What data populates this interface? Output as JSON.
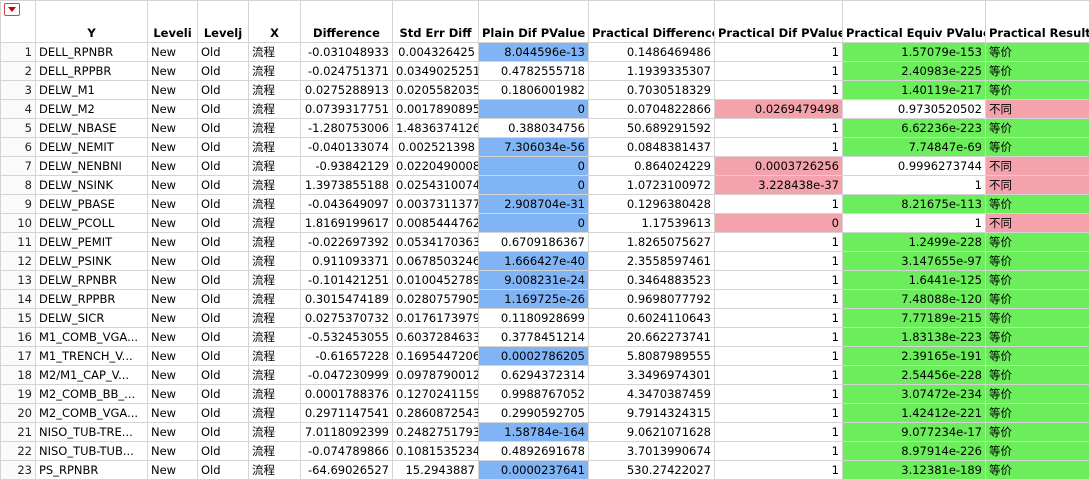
{
  "table": {
    "columns": [
      "Y",
      "Leveli",
      "Levelj",
      "X",
      "Difference",
      "Std Err Diff",
      "Plain Dif PValue",
      "Practical Difference",
      "Practical Dif PValue",
      "Practical Equiv PValue",
      "Practical Result"
    ],
    "rows": [
      {
        "cells": [
          "1",
          "DELL_RPNBR",
          "New",
          "Old",
          "流程",
          "-0.031048933",
          "0.004326425",
          "8.044596e-13",
          "0.1486469486",
          "1",
          "1.57079e-153",
          "等价"
        ],
        "colors": {
          "7": "#80b4f5",
          "10": "#6cee5c",
          "11": "#6cee5c"
        }
      },
      {
        "cells": [
          "2",
          "DELL_RPPBR",
          "New",
          "Old",
          "流程",
          "-0.024751371",
          "0.0349025251",
          "0.4782555718",
          "1.1939335307",
          "1",
          "2.40983e-225",
          "等价"
        ],
        "colors": {
          "10": "#6cee5c",
          "11": "#6cee5c"
        }
      },
      {
        "cells": [
          "3",
          "DELW_M1",
          "New",
          "Old",
          "流程",
          "0.0275288913",
          "0.0205582035",
          "0.1806001982",
          "0.7030518329",
          "1",
          "1.40119e-217",
          "等价"
        ],
        "colors": {
          "10": "#6cee5c",
          "11": "#6cee5c"
        }
      },
      {
        "cells": [
          "4",
          "DELW_M2",
          "New",
          "Old",
          "流程",
          "0.0739317751",
          "0.0017890895",
          "0",
          "0.0704822866",
          "0.0269479498",
          "0.9730520502",
          "不同"
        ],
        "colors": {
          "7": "#80b4f5",
          "9": "#f4a2ac",
          "11": "#f4a2ac"
        }
      },
      {
        "cells": [
          "5",
          "DELW_NBASE",
          "New",
          "Old",
          "流程",
          "-1.280753006",
          "1.4836374126",
          "0.388034756",
          "50.689291592",
          "1",
          "6.62236e-223",
          "等价"
        ],
        "colors": {
          "10": "#6cee5c",
          "11": "#6cee5c"
        }
      },
      {
        "cells": [
          "6",
          "DELW_NEMIT",
          "New",
          "Old",
          "流程",
          "-0.040133074",
          "0.002521398",
          "7.306034e-56",
          "0.0848381437",
          "1",
          "7.74847e-69",
          "等价"
        ],
        "colors": {
          "7": "#80b4f5",
          "10": "#6cee5c",
          "11": "#6cee5c"
        }
      },
      {
        "cells": [
          "7",
          "DELW_NENBNI",
          "New",
          "Old",
          "流程",
          "-0.93842129",
          "0.0220490008",
          "0",
          "0.864024229",
          "0.0003726256",
          "0.9996273744",
          "不同"
        ],
        "colors": {
          "7": "#80b4f5",
          "9": "#f4a2ac",
          "11": "#f4a2ac"
        }
      },
      {
        "cells": [
          "8",
          "DELW_NSINK",
          "New",
          "Old",
          "流程",
          "1.3973855188",
          "0.0254310074",
          "0",
          "1.0723100972",
          "3.228438e-37",
          "1",
          "不同"
        ],
        "colors": {
          "7": "#80b4f5",
          "9": "#f4a2ac",
          "11": "#f4a2ac"
        }
      },
      {
        "cells": [
          "9",
          "DELW_PBASE",
          "New",
          "Old",
          "流程",
          "-0.043649097",
          "0.0037311377",
          "2.908704e-31",
          "0.1296380428",
          "1",
          "8.21675e-113",
          "等价"
        ],
        "colors": {
          "7": "#80b4f5",
          "10": "#6cee5c",
          "11": "#6cee5c"
        }
      },
      {
        "cells": [
          "10",
          "DELW_PCOLL",
          "New",
          "Old",
          "流程",
          "1.8169199617",
          "0.0085444762",
          "0",
          "1.17539613",
          "0",
          "1",
          "不同"
        ],
        "colors": {
          "7": "#80b4f5",
          "9": "#f4a2ac",
          "11": "#f4a2ac"
        }
      },
      {
        "cells": [
          "11",
          "DELW_PEMIT",
          "New",
          "Old",
          "流程",
          "-0.022697392",
          "0.0534170363",
          "0.6709186367",
          "1.8265075627",
          "1",
          "1.2499e-228",
          "等价"
        ],
        "colors": {
          "10": "#6cee5c",
          "11": "#6cee5c"
        }
      },
      {
        "cells": [
          "12",
          "DELW_PSINK",
          "New",
          "Old",
          "流程",
          "0.911093371",
          "0.0678503246",
          "1.666427e-40",
          "2.3558597461",
          "1",
          "3.147655e-97",
          "等价"
        ],
        "colors": {
          "7": "#80b4f5",
          "10": "#6cee5c",
          "11": "#6cee5c"
        }
      },
      {
        "cells": [
          "13",
          "DELW_RPNBR",
          "New",
          "Old",
          "流程",
          "-0.101421251",
          "0.0100452789",
          "9.008231e-24",
          "0.3464883523",
          "1",
          "1.6441e-125",
          "等价"
        ],
        "colors": {
          "7": "#80b4f5",
          "10": "#6cee5c",
          "11": "#6cee5c"
        }
      },
      {
        "cells": [
          "14",
          "DELW_RPPBR",
          "New",
          "Old",
          "流程",
          "0.3015474189",
          "0.0280757905",
          "1.169725e-26",
          "0.9698077792",
          "1",
          "7.48088e-120",
          "等价"
        ],
        "colors": {
          "7": "#80b4f5",
          "10": "#6cee5c",
          "11": "#6cee5c"
        }
      },
      {
        "cells": [
          "15",
          "DELW_SICR",
          "New",
          "Old",
          "流程",
          "0.0275370732",
          "0.0176173979",
          "0.1180928699",
          "0.6024110643",
          "1",
          "7.77189e-215",
          "等价"
        ],
        "colors": {
          "10": "#6cee5c",
          "11": "#6cee5c"
        }
      },
      {
        "cells": [
          "16",
          "M1_COMB_VGA...",
          "New",
          "Old",
          "流程",
          "-0.532453055",
          "0.6037284633",
          "0.3778451214",
          "20.662273741",
          "1",
          "1.83138e-223",
          "等价"
        ],
        "colors": {
          "10": "#6cee5c",
          "11": "#6cee5c"
        }
      },
      {
        "cells": [
          "17",
          "M1_TRENCH_V...",
          "New",
          "Old",
          "流程",
          "-0.61657228",
          "0.1695447206",
          "0.0002786205",
          "5.8087989555",
          "1",
          "2.39165e-191",
          "等价"
        ],
        "colors": {
          "7": "#80b4f5",
          "10": "#6cee5c",
          "11": "#6cee5c"
        }
      },
      {
        "cells": [
          "18",
          "M2/M1_CAP_V...",
          "New",
          "Old",
          "流程",
          "-0.047230999",
          "0.0978790012",
          "0.6294372314",
          "3.3496974301",
          "1",
          "2.54456e-228",
          "等价"
        ],
        "colors": {
          "10": "#6cee5c",
          "11": "#6cee5c"
        }
      },
      {
        "cells": [
          "19",
          "M2_COMB_BB_...",
          "New",
          "Old",
          "流程",
          "0.0001788376",
          "0.1270241159",
          "0.9988767052",
          "4.3470387459",
          "1",
          "3.07472e-234",
          "等价"
        ],
        "colors": {
          "10": "#6cee5c",
          "11": "#6cee5c"
        }
      },
      {
        "cells": [
          "20",
          "M2_COMB_VGA...",
          "New",
          "Old",
          "流程",
          "0.2971147541",
          "0.2860872543",
          "0.2990592705",
          "9.7914324315",
          "1",
          "1.42412e-221",
          "等价"
        ],
        "colors": {
          "10": "#6cee5c",
          "11": "#6cee5c"
        }
      },
      {
        "cells": [
          "21",
          "NISO_TUB-TRE...",
          "New",
          "Old",
          "流程",
          "7.0118092399",
          "0.2482751793",
          "1.58784e-164",
          "9.0621071628",
          "1",
          "9.077234e-17",
          "等价"
        ],
        "colors": {
          "7": "#80b4f5",
          "10": "#6cee5c",
          "11": "#6cee5c"
        }
      },
      {
        "cells": [
          "22",
          "NISO_TUB-TUB...",
          "New",
          "Old",
          "流程",
          "-0.074789866",
          "0.1081535234",
          "0.4892691678",
          "3.7013990674",
          "1",
          "8.97914e-226",
          "等价"
        ],
        "colors": {
          "10": "#6cee5c",
          "11": "#6cee5c"
        }
      },
      {
        "cells": [
          "23",
          "PS_RPNBR",
          "New",
          "Old",
          "流程",
          "-64.69026527",
          "15.2943887",
          "0.0000237641",
          "530.27422027",
          "1",
          "3.12381e-189",
          "等价"
        ],
        "colors": {
          "7": "#80b4f5",
          "10": "#6cee5c",
          "11": "#6cee5c"
        }
      }
    ]
  }
}
